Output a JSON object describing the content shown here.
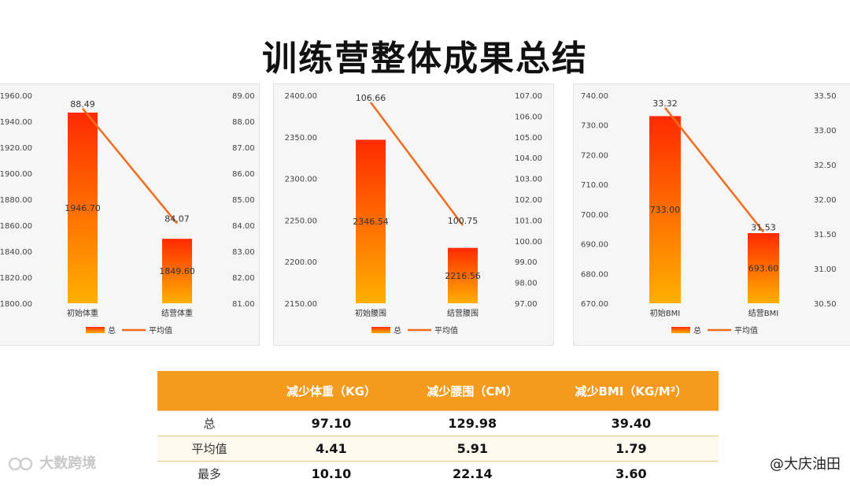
{
  "title": "训练营整体成果总结",
  "colors": {
    "bar_top": "#ff2a00",
    "bar_bottom": "#ffb000",
    "line": "#f26b1d",
    "header_bg": "#f59a1c"
  },
  "chart_data": [
    {
      "type": "bar",
      "categories": [
        "初始体重",
        "结营体重"
      ],
      "series": [
        {
          "name": "总",
          "type": "bar",
          "axis": "left",
          "values": [
            1946.7,
            1849.6
          ]
        },
        {
          "name": "平均值",
          "type": "line",
          "axis": "right",
          "values": [
            88.49,
            84.07
          ]
        }
      ],
      "left_axis": {
        "min": 1800,
        "max": 1960,
        "step": 20,
        "ticks": [
          "1800.00",
          "1820.00",
          "1840.00",
          "1860.00",
          "1880.00",
          "1900.00",
          "1920.00",
          "1940.00",
          "1960.00"
        ]
      },
      "right_axis": {
        "min": 81,
        "max": 89,
        "step": 1,
        "ticks": [
          "81.00",
          "82.00",
          "83.00",
          "84.00",
          "85.00",
          "86.00",
          "87.00",
          "88.00",
          "89.00"
        ]
      },
      "bar_labels": [
        "1946.70",
        "1849.60"
      ],
      "line_labels": [
        "88.49",
        "84.07"
      ],
      "legend": [
        "总",
        "平均值"
      ],
      "legend_position": "bottom",
      "grid": false
    },
    {
      "type": "bar",
      "categories": [
        "初始腰围",
        "结营腰围"
      ],
      "series": [
        {
          "name": "总",
          "type": "bar",
          "axis": "left",
          "values": [
            2346.54,
            2216.56
          ]
        },
        {
          "name": "平均值",
          "type": "line",
          "axis": "right",
          "values": [
            106.66,
            100.75
          ]
        }
      ],
      "left_axis": {
        "min": 2150,
        "max": 2400,
        "step": 50,
        "ticks": [
          "2150.00",
          "2200.00",
          "2250.00",
          "2300.00",
          "2350.00",
          "2400.00"
        ]
      },
      "right_axis": {
        "min": 97,
        "max": 107,
        "step": 1,
        "ticks": [
          "97.00",
          "98.00",
          "99.00",
          "100.00",
          "101.00",
          "102.00",
          "103.00",
          "104.00",
          "105.00",
          "106.00",
          "107.00"
        ]
      },
      "bar_labels": [
        "2346.54",
        "2216.56"
      ],
      "line_labels": [
        "106.66",
        "100.75"
      ],
      "legend": [
        "总",
        "平均值"
      ],
      "legend_position": "bottom",
      "grid": false
    },
    {
      "type": "bar",
      "categories": [
        "初始BMI",
        "结营BMI"
      ],
      "series": [
        {
          "name": "总",
          "type": "bar",
          "axis": "left",
          "values": [
            733.0,
            693.6
          ]
        },
        {
          "name": "平均值",
          "type": "line",
          "axis": "right",
          "values": [
            33.32,
            31.53
          ]
        }
      ],
      "left_axis": {
        "min": 670,
        "max": 740,
        "step": 10,
        "ticks": [
          "670.00",
          "680.00",
          "690.00",
          "700.00",
          "710.00",
          "720.00",
          "730.00",
          "740.00"
        ]
      },
      "right_axis": {
        "min": 30.5,
        "max": 33.5,
        "step": 0.5,
        "ticks": [
          "30.50",
          "31.00",
          "31.50",
          "32.00",
          "32.50",
          "33.00",
          "33.50"
        ]
      },
      "bar_labels": [
        "733.00",
        "693.60"
      ],
      "line_labels": [
        "33.32",
        "31.53"
      ],
      "legend": [
        "总",
        "平均值"
      ],
      "legend_position": "bottom",
      "grid": false
    }
  ],
  "table": {
    "headers": [
      "",
      "减少体重（KG）",
      "减少腰围（CM）",
      "减少BMI（KG/M²）"
    ],
    "rows": [
      {
        "label": "总",
        "values": [
          "97.10",
          "129.98",
          "39.40"
        ]
      },
      {
        "label": "平均值",
        "values": [
          "4.41",
          "5.91",
          "1.79"
        ]
      },
      {
        "label": "最多",
        "values": [
          "10.10",
          "22.14",
          "3.60"
        ]
      }
    ]
  },
  "watermark_left": "大数跨境",
  "watermark_right": "@大庆油田"
}
